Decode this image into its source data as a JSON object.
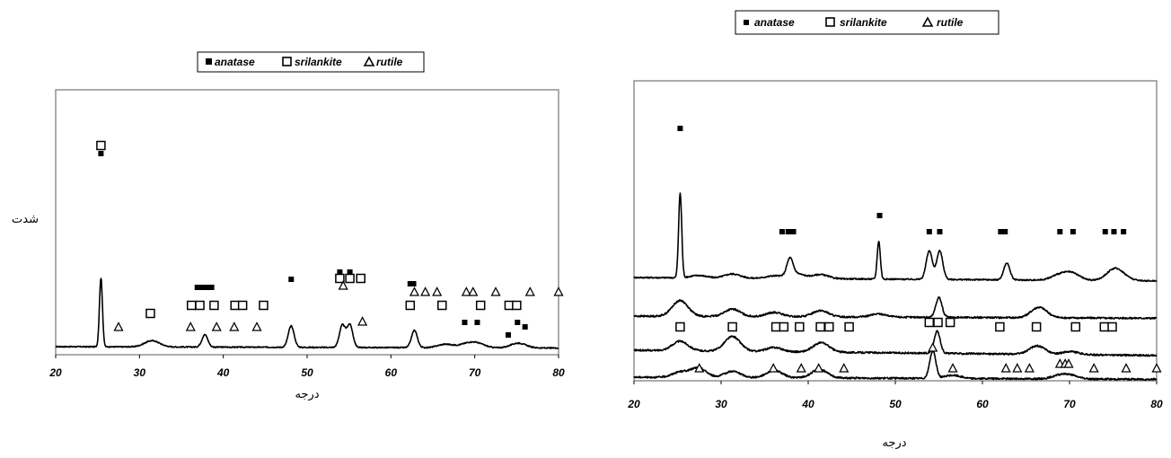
{
  "chart_data": [
    {
      "type": "line",
      "id": "left",
      "xlabel": "درجه",
      "ylabel": "شدت",
      "xlim": [
        20,
        80
      ],
      "x_ticks": [
        "20",
        "30",
        "40",
        "50",
        "60",
        "70",
        "80"
      ],
      "legend": {
        "placement": "top-center",
        "entries": [
          {
            "label": "anatase",
            "symbol": "filled-square"
          },
          {
            "label": "srilankite",
            "symbol": "open-square"
          },
          {
            "label": "rutile",
            "symbol": "open-triangle"
          }
        ]
      },
      "series": [
        {
          "peaks": [
            [
              25.4,
              100
            ],
            [
              31.5,
              9
            ],
            [
              37.8,
              18
            ],
            [
              48.1,
              31
            ],
            [
              54.2,
              32
            ],
            [
              55.1,
              33
            ],
            [
              62.8,
              25
            ],
            [
              66.5,
              5
            ],
            [
              69.0,
              5
            ],
            [
              70.3,
              6
            ],
            [
              75.2,
              7
            ]
          ],
          "baseline_start": 10,
          "baseline_end": 8
        }
      ],
      "markers": {
        "anatase": [
          25.4,
          36.9,
          37.5,
          38.0,
          38.6,
          48.1,
          53.9,
          55.1,
          62.3,
          62.7,
          68.8,
          70.3,
          74.0,
          75.1,
          76.0
        ],
        "srilankite": [
          25.4,
          31.3,
          36.2,
          37.2,
          38.9,
          41.4,
          42.3,
          44.8,
          53.9,
          55.1,
          56.4,
          62.3,
          66.1,
          70.7,
          74.1,
          75.0
        ],
        "rutile": [
          27.5,
          36.1,
          39.2,
          41.3,
          44.0,
          54.3,
          56.6,
          62.8,
          64.1,
          65.5,
          69.0,
          69.8,
          72.5,
          76.6,
          80.0
        ]
      }
    },
    {
      "type": "line",
      "id": "right",
      "xlabel": "درجه",
      "ylabel": "",
      "xlim": [
        20,
        80
      ],
      "x_ticks": [
        "20",
        "30",
        "40",
        "50",
        "60",
        "70",
        "80"
      ],
      "legend": {
        "placement": "top-center",
        "entries": [
          {
            "label": "anatase",
            "symbol": "filled-square"
          },
          {
            "label": "srilankite",
            "symbol": "open-square"
          },
          {
            "label": "rutile",
            "symbol": "open-triangle"
          }
        ]
      },
      "series": [
        {
          "peaks": [
            [
              25.3,
              100
            ],
            [
              27.4,
              3
            ],
            [
              31.3,
              5
            ],
            [
              36.1,
              3
            ],
            [
              37.9,
              20
            ],
            [
              38.6,
              6
            ],
            [
              41.4,
              5
            ],
            [
              48.1,
              45
            ],
            [
              53.9,
              34
            ],
            [
              55.1,
              34
            ],
            [
              62.8,
              20
            ],
            [
              68.8,
              6
            ],
            [
              70.3,
              8
            ],
            [
              75.1,
              12
            ],
            [
              76.0,
              4
            ]
          ],
          "baseline_start": 67,
          "baseline_end": 63
        },
        {
          "peaks": [
            [
              25.3,
              15
            ],
            [
              31.3,
              7
            ],
            [
              36.1,
              4
            ],
            [
              41.4,
              6
            ],
            [
              48.1,
              3
            ],
            [
              55.0,
              19
            ],
            [
              66.5,
              10
            ]
          ],
          "baseline_start": 43,
          "baseline_end": 41
        },
        {
          "peaks": [
            [
              25.3,
              9
            ],
            [
              31.3,
              14
            ],
            [
              36.1,
              4
            ],
            [
              41.5,
              9
            ],
            [
              54.8,
              21
            ],
            [
              66.3,
              8
            ],
            [
              70.1,
              3
            ]
          ],
          "baseline_start": 25,
          "baseline_end": 20
        },
        {
          "peaks": [
            [
              25.3,
              5
            ],
            [
              27.4,
              9
            ],
            [
              31.3,
              6
            ],
            [
              36.1,
              7
            ],
            [
              41.3,
              8
            ],
            [
              54.3,
              26
            ],
            [
              56.6,
              3
            ],
            [
              68.9,
              3
            ],
            [
              70.1,
              3
            ]
          ],
          "baseline_start": 8,
          "baseline_end": 6
        }
      ],
      "markers": {
        "anatase": [
          25.3,
          37.0,
          37.7,
          38.3,
          48.2,
          53.9,
          55.1,
          62.1,
          62.6,
          68.9,
          70.4,
          74.1,
          75.1,
          76.2
        ],
        "srilankite": [
          25.3,
          31.3,
          36.3,
          37.2,
          39.0,
          41.4,
          42.4,
          44.7,
          53.9,
          54.9,
          56.3,
          62.0,
          66.2,
          70.7,
          74.0,
          74.9
        ],
        "rutile": [
          27.5,
          36.0,
          39.2,
          41.2,
          44.1,
          54.3,
          56.6,
          62.7,
          64.0,
          65.4,
          68.9,
          69.5,
          69.9,
          72.8,
          76.5,
          80.0
        ]
      }
    }
  ]
}
